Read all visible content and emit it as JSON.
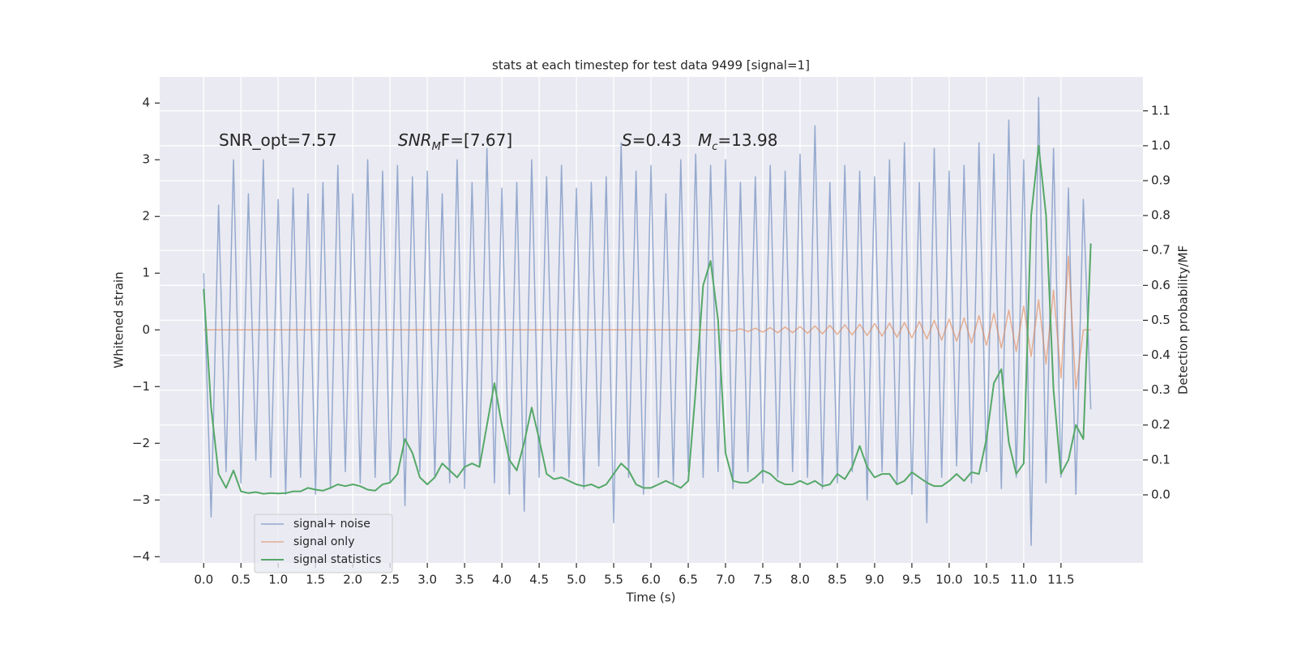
{
  "chart_data": {
    "type": "line",
    "title": "stats at each timestep for test data 9499 [signal=1]",
    "xlabel": "Time (s)",
    "ylabel": "Whitened strain",
    "y2label": "Detection probability/MF",
    "annotations": [
      [
        "SNR_opt=7.57"
      ],
      [
        "SNR",
        "M",
        "F=[7.67]"
      ],
      [
        "S",
        "=0.43",
        "M",
        "c",
        "=13.98"
      ]
    ],
    "grid": true,
    "legend": "lower left",
    "xlim": [
      -0.59,
      12.6
    ],
    "ylim": [
      -4.11,
      4.46
    ],
    "y2lim": [
      -0.195,
      1.197
    ],
    "xticks": [
      {
        "value": 0,
        "label": "0.0"
      },
      0.5,
      {
        "value": 1,
        "label": "1.0"
      },
      1.5,
      {
        "value": 2,
        "label": "2.0"
      },
      2.5,
      {
        "value": 3,
        "label": "3.0"
      },
      3.5,
      {
        "value": 4,
        "label": "4.0"
      },
      4.5,
      {
        "value": 5,
        "label": "5.0"
      },
      5.5,
      {
        "value": 6,
        "label": "6.0"
      },
      6.5,
      {
        "value": 7,
        "label": "7.0"
      },
      7.5,
      {
        "value": 8,
        "label": "8.0"
      },
      8.5,
      {
        "value": 9,
        "label": "9.0"
      },
      9.5,
      {
        "value": 10,
        "label": "10.0"
      },
      10.5,
      {
        "value": 11,
        "label": "11.0"
      },
      11.5
    ],
    "yticks": [
      {
        "value": -4,
        "label": "−4"
      },
      {
        "value": -3,
        "label": "−3"
      },
      {
        "value": -2,
        "label": "−2"
      },
      {
        "value": -1,
        "label": "−1"
      },
      0,
      1,
      2,
      3,
      4
    ],
    "y2ticks": [
      {
        "value": 0,
        "label": "0.0"
      },
      0.1,
      0.2,
      0.3,
      0.4,
      0.5,
      0.6,
      0.7,
      0.8,
      0.9,
      {
        "value": 1,
        "label": "1.0"
      },
      1.1
    ],
    "x": [
      0,
      0.1,
      0.2,
      0.3,
      0.4,
      0.5,
      0.6,
      0.7,
      0.8,
      0.9,
      1,
      1.1,
      1.2,
      1.3,
      1.4,
      1.5,
      1.6,
      1.7,
      1.8,
      1.9,
      2,
      2.1,
      2.2,
      2.3,
      2.4,
      2.5,
      2.6,
      2.7,
      2.8,
      2.9,
      3,
      3.1,
      3.2,
      3.3,
      3.4,
      3.5,
      3.6,
      3.7,
      3.8,
      3.9,
      4,
      4.1,
      4.2,
      4.3,
      4.4,
      4.5,
      4.6,
      4.7,
      4.8,
      4.9,
      5,
      5.1,
      5.2,
      5.3,
      5.4,
      5.5,
      5.6,
      5.7,
      5.8,
      5.9,
      6,
      6.1,
      6.2,
      6.3,
      6.4,
      6.5,
      6.6,
      6.7,
      6.8,
      6.9,
      7,
      7.1,
      7.2,
      7.3,
      7.4,
      7.5,
      7.6,
      7.7,
      7.8,
      7.9,
      8,
      8.1,
      8.2,
      8.3,
      8.4,
      8.5,
      8.6,
      8.7,
      8.8,
      8.9,
      9,
      9.1,
      9.2,
      9.3,
      9.4,
      9.5,
      9.6,
      9.7,
      9.8,
      9.9,
      10,
      10.1,
      10.2,
      10.3,
      10.4,
      10.5,
      10.6,
      10.7,
      10.8,
      10.9,
      11,
      11.1,
      11.2,
      11.3,
      11.4,
      11.5,
      11.6,
      11.7,
      11.8,
      11.9
    ],
    "series": [
      {
        "name": "signal+ noise",
        "color": "#4c72b0",
        "values": [
          1.0,
          -3.3,
          2.2,
          -2.5,
          3.0,
          -2.7,
          2.4,
          -2.3,
          3.0,
          -2.6,
          2.3,
          -2.9,
          2.5,
          -2.6,
          2.4,
          -2.9,
          2.6,
          -2.8,
          2.9,
          -2.5,
          2.4,
          -2.7,
          3.0,
          -2.6,
          2.8,
          -2.7,
          2.9,
          -3.1,
          2.7,
          -2.5,
          2.8,
          -2.6,
          2.4,
          -2.7,
          3.0,
          -2.8,
          2.6,
          -2.4,
          3.2,
          -2.7,
          2.5,
          -2.9,
          2.6,
          -3.2,
          3.0,
          -2.6,
          2.7,
          -2.5,
          2.9,
          -2.6,
          2.5,
          -2.8,
          2.6,
          -2.4,
          2.7,
          -3.4,
          3.3,
          -2.6,
          2.8,
          -2.9,
          2.9,
          -2.6,
          2.4,
          -2.7,
          3.0,
          -2.5,
          3.1,
          -2.6,
          2.9,
          -2.5,
          3.0,
          -2.8,
          2.6,
          -2.5,
          2.7,
          -2.7,
          2.9,
          -2.6,
          2.8,
          -2.5,
          3.1,
          -2.6,
          3.6,
          -2.8,
          2.6,
          -2.7,
          2.9,
          -2.5,
          2.8,
          -3.0,
          2.7,
          -2.5,
          3.0,
          -2.7,
          3.3,
          -2.9,
          2.6,
          -3.4,
          3.2,
          -2.6,
          2.8,
          -2.4,
          2.9,
          -2.7,
          3.3,
          -2.5,
          3.1,
          -2.8,
          3.7,
          -2.6,
          3.0,
          -3.8,
          4.1,
          -2.7,
          3.2,
          -2.6,
          2.5,
          -2.9,
          2.3,
          -1.4
        ]
      },
      {
        "name": "signal only",
        "color": "#dd8452",
        "values": [
          0,
          0,
          0,
          0,
          0,
          0,
          0,
          0,
          0,
          0,
          0,
          0,
          0,
          0,
          0,
          0,
          0,
          0,
          0,
          0,
          0,
          0,
          0,
          0,
          0,
          0,
          0,
          0,
          0,
          0,
          0,
          0,
          0,
          0,
          0,
          0,
          0,
          0,
          0,
          0,
          0,
          0,
          0,
          0,
          0,
          0,
          0,
          0,
          0,
          0,
          0,
          0,
          0,
          0,
          0,
          0,
          0,
          0,
          0,
          0,
          0,
          0,
          0,
          0,
          0,
          0,
          0,
          0,
          0,
          0,
          0.01,
          -0.02,
          0.02,
          -0.03,
          0.03,
          -0.04,
          0.04,
          -0.05,
          0.05,
          -0.05,
          0.06,
          -0.06,
          0.07,
          -0.07,
          0.08,
          -0.08,
          0.09,
          -0.09,
          0.1,
          -0.1,
          0.11,
          -0.11,
          0.12,
          -0.13,
          0.13,
          -0.14,
          0.15,
          -0.16,
          0.17,
          -0.18,
          0.19,
          -0.2,
          0.21,
          -0.23,
          0.25,
          -0.27,
          0.29,
          -0.32,
          0.35,
          -0.38,
          0.42,
          -0.47,
          0.53,
          -0.6,
          0.7,
          -0.85,
          1.3,
          -1.05,
          0,
          0
        ]
      },
      {
        "name": "signal statistics",
        "color": "#55a868",
        "axis": "y2",
        "values": [
          0.59,
          0.25,
          0.06,
          0.02,
          0.07,
          0.01,
          0.005,
          0.008,
          0.003,
          0.005,
          0.004,
          0.005,
          0.01,
          0.01,
          0.02,
          0.015,
          0.012,
          0.02,
          0.03,
          0.025,
          0.03,
          0.025,
          0.015,
          0.012,
          0.03,
          0.035,
          0.06,
          0.16,
          0.12,
          0.05,
          0.03,
          0.05,
          0.09,
          0.07,
          0.05,
          0.08,
          0.09,
          0.08,
          0.2,
          0.32,
          0.2,
          0.1,
          0.07,
          0.15,
          0.25,
          0.16,
          0.06,
          0.045,
          0.05,
          0.04,
          0.03,
          0.025,
          0.03,
          0.02,
          0.03,
          0.06,
          0.09,
          0.07,
          0.03,
          0.02,
          0.02,
          0.03,
          0.04,
          0.03,
          0.02,
          0.04,
          0.3,
          0.6,
          0.67,
          0.5,
          0.12,
          0.04,
          0.035,
          0.035,
          0.05,
          0.07,
          0.06,
          0.04,
          0.03,
          0.03,
          0.04,
          0.03,
          0.04,
          0.025,
          0.03,
          0.06,
          0.045,
          0.08,
          0.14,
          0.08,
          0.05,
          0.06,
          0.06,
          0.03,
          0.04,
          0.065,
          0.05,
          0.035,
          0.025,
          0.025,
          0.04,
          0.06,
          0.04,
          0.065,
          0.06,
          0.16,
          0.32,
          0.36,
          0.15,
          0.06,
          0.09,
          0.8,
          1.0,
          0.8,
          0.3,
          0.06,
          0.1,
          0.2,
          0.16,
          0.72
        ]
      }
    ]
  }
}
